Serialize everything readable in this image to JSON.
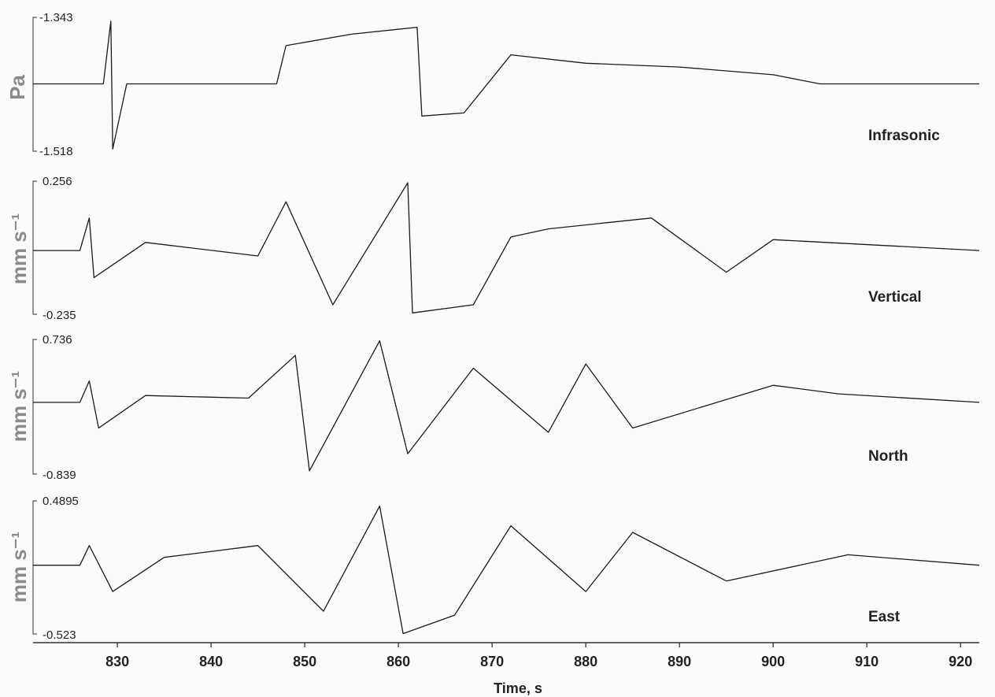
{
  "chart_data": {
    "type": "line",
    "xlabel": "Time, s",
    "xlim": [
      821,
      922
    ],
    "x_ticks": [
      830,
      840,
      850,
      860,
      870,
      880,
      890,
      900,
      910,
      920
    ],
    "grid": false,
    "legend": "none",
    "line_color": "#1a1a1a",
    "ylabel_color": "#8a8a8a",
    "panels": [
      {
        "name": "Infrasonic",
        "ylabel": "Pa",
        "ymax_label": "-1.343",
        "ymin_label": "-1.518",
        "ylim": [
          -1.518,
          -1.343
        ],
        "series": [
          {
            "x": 821,
            "y": -1.43
          },
          {
            "x": 828.5,
            "y": -1.43
          },
          {
            "x": 829.3,
            "y": -1.348
          },
          {
            "x": 829.5,
            "y": -1.515
          },
          {
            "x": 831,
            "y": -1.43
          },
          {
            "x": 840,
            "y": -1.43
          },
          {
            "x": 847,
            "y": -1.43
          },
          {
            "x": 848,
            "y": -1.38
          },
          {
            "x": 855,
            "y": -1.365
          },
          {
            "x": 862,
            "y": -1.356
          },
          {
            "x": 862.5,
            "y": -1.472
          },
          {
            "x": 867,
            "y": -1.468
          },
          {
            "x": 872,
            "y": -1.392
          },
          {
            "x": 880,
            "y": -1.403
          },
          {
            "x": 890,
            "y": -1.408
          },
          {
            "x": 900,
            "y": -1.418
          },
          {
            "x": 905,
            "y": -1.43
          },
          {
            "x": 922,
            "y": -1.43
          }
        ]
      },
      {
        "name": "Vertical",
        "ylabel": "mm s⁻¹",
        "ymax_label": "0.256",
        "ymin_label": "-0.235",
        "ylim": [
          -0.235,
          0.256
        ],
        "series": [
          {
            "x": 821,
            "y": 0.0
          },
          {
            "x": 826,
            "y": 0.0
          },
          {
            "x": 827,
            "y": 0.12
          },
          {
            "x": 827.5,
            "y": -0.1
          },
          {
            "x": 833,
            "y": 0.03
          },
          {
            "x": 845,
            "y": -0.02
          },
          {
            "x": 848,
            "y": 0.18
          },
          {
            "x": 853,
            "y": -0.2
          },
          {
            "x": 861,
            "y": 0.25
          },
          {
            "x": 861.5,
            "y": -0.23
          },
          {
            "x": 868,
            "y": -0.2
          },
          {
            "x": 872,
            "y": 0.05
          },
          {
            "x": 876,
            "y": 0.08
          },
          {
            "x": 887,
            "y": 0.12
          },
          {
            "x": 895,
            "y": -0.08
          },
          {
            "x": 900,
            "y": 0.04
          },
          {
            "x": 922,
            "y": 0.0
          }
        ]
      },
      {
        "name": "North",
        "ylabel": "mm s⁻¹",
        "ymax_label": "0.736",
        "ymin_label": "-0.839",
        "ylim": [
          -0.839,
          0.736
        ],
        "series": [
          {
            "x": 821,
            "y": 0.0
          },
          {
            "x": 826,
            "y": 0.0
          },
          {
            "x": 827,
            "y": 0.25
          },
          {
            "x": 828,
            "y": -0.3
          },
          {
            "x": 833,
            "y": 0.08
          },
          {
            "x": 844,
            "y": 0.05
          },
          {
            "x": 849,
            "y": 0.55
          },
          {
            "x": 850.5,
            "y": -0.8
          },
          {
            "x": 858,
            "y": 0.72
          },
          {
            "x": 861,
            "y": -0.6
          },
          {
            "x": 868,
            "y": 0.4
          },
          {
            "x": 876,
            "y": -0.35
          },
          {
            "x": 880,
            "y": 0.45
          },
          {
            "x": 885,
            "y": -0.3
          },
          {
            "x": 900,
            "y": 0.2
          },
          {
            "x": 907,
            "y": 0.1
          },
          {
            "x": 922,
            "y": 0.0
          }
        ]
      },
      {
        "name": "East",
        "ylabel": "mm s⁻¹",
        "ymax_label": "0.4895",
        "ymin_label": "-0.523",
        "ylim": [
          -0.523,
          0.4895
        ],
        "series": [
          {
            "x": 821,
            "y": 0.0
          },
          {
            "x": 826,
            "y": 0.0
          },
          {
            "x": 827,
            "y": 0.15
          },
          {
            "x": 829.5,
            "y": -0.2
          },
          {
            "x": 835,
            "y": 0.06
          },
          {
            "x": 845,
            "y": 0.15
          },
          {
            "x": 852,
            "y": -0.35
          },
          {
            "x": 858,
            "y": 0.45
          },
          {
            "x": 860.5,
            "y": -0.52
          },
          {
            "x": 866,
            "y": -0.38
          },
          {
            "x": 872,
            "y": 0.3
          },
          {
            "x": 880,
            "y": -0.2
          },
          {
            "x": 885,
            "y": 0.25
          },
          {
            "x": 895,
            "y": -0.12
          },
          {
            "x": 908,
            "y": 0.08
          },
          {
            "x": 922,
            "y": 0.0
          }
        ]
      }
    ]
  }
}
